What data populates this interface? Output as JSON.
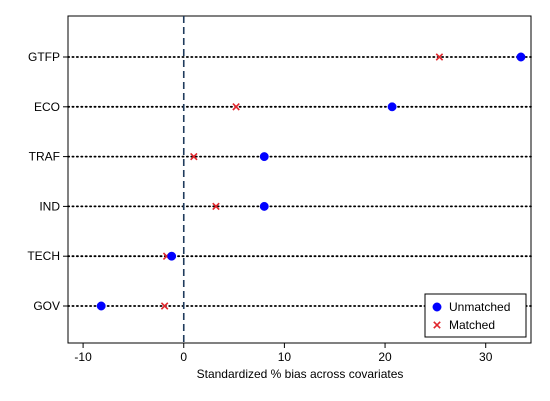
{
  "chart_data": {
    "type": "scatter",
    "title": "",
    "xlabel": "Standardized % bias across covariates",
    "ylabel": "",
    "xlim": [
      -11.5,
      34.5
    ],
    "xticks": [
      -10,
      0,
      10,
      20,
      30
    ],
    "xtick_labels": [
      "-10",
      "0",
      "10",
      "20",
      "30"
    ],
    "reference_line_x": 0,
    "grid": false,
    "legend_position": "bottom-right",
    "categories": [
      "GTFP",
      "ECO",
      "TRAF",
      "IND",
      "TECH",
      "GOV"
    ],
    "series": [
      {
        "name": "Unmatched",
        "marker": "circle",
        "color": "#0000ff",
        "values": [
          33.5,
          20.7,
          8.0,
          8.0,
          -1.2,
          -8.2
        ]
      },
      {
        "name": "Matched",
        "marker": "x",
        "color": "#e0262c",
        "values": [
          25.4,
          5.2,
          1.0,
          3.2,
          -1.7,
          -1.9
        ]
      }
    ]
  }
}
